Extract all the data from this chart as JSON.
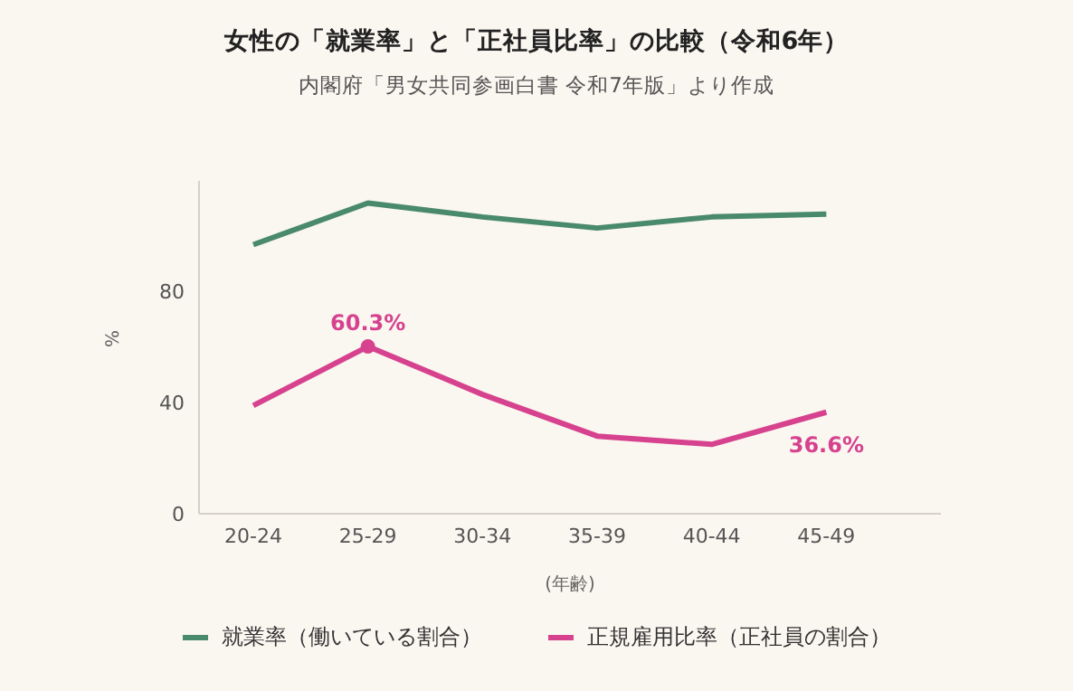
{
  "chart_data": {
    "type": "line",
    "title": "女性の「就業率」と「正社員比率」の比較（令和6年）",
    "subtitle": "内閣府「男女共同参画白書 令和7年版」より作成",
    "xlabel": "(年齢)",
    "ylabel": "%",
    "categories": [
      "20-24",
      "25-29",
      "30-34",
      "35-39",
      "40-44",
      "45-49",
      null
    ],
    "series": [
      {
        "name": "就業率（働いている割合）",
        "color": "#4a8a6c",
        "values": [
          97,
          112,
          107,
          103,
          107,
          108,
          null
        ]
      },
      {
        "name": "正規雇用比率（正社員の割合）",
        "color": "#d6428e",
        "values": [
          39,
          60.3,
          43,
          28,
          25,
          36.6,
          null
        ],
        "value_labels": [
          null,
          "60.3%",
          null,
          null,
          null,
          "36.6%",
          null
        ]
      },
      {
        "type": "scatter",
        "color": "#d6428e",
        "x": [
          "25-29"
        ],
        "values": [
          60.3
        ],
        "marker": "circle"
      }
    ],
    "ylim": [
      0,
      120
    ],
    "yticks": [
      0,
      40,
      80
    ],
    "grid": false,
    "legend": "bottom",
    "line_style": "solid"
  }
}
